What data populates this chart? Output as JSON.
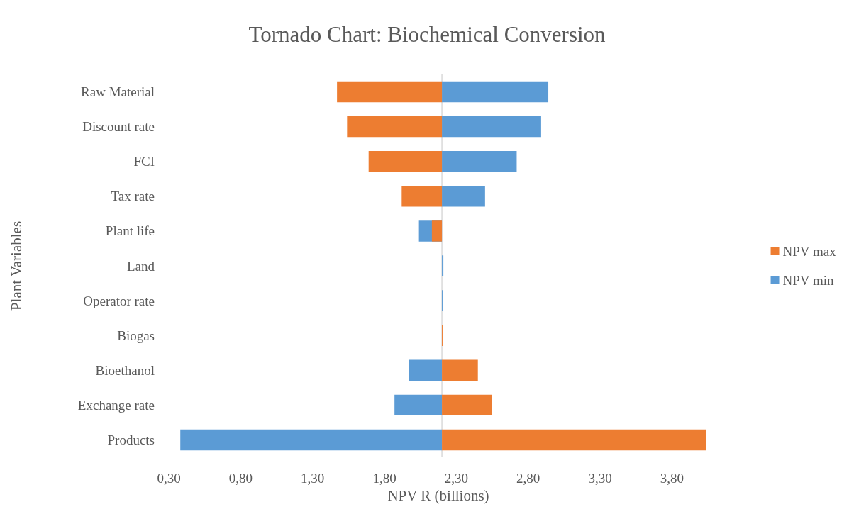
{
  "chart_data": {
    "type": "bar",
    "title": "Tornado Chart: Biochemical Conversion",
    "xlabel": "NPV R (billions)",
    "ylabel": "Plant Variables",
    "orientation": "horizontal",
    "categories": [
      "Raw Material",
      "Discount rate",
      "FCI",
      "Tax rate",
      "Plant life",
      "Land",
      "Operator rate",
      "Biogas",
      "Bioethanol",
      "Exchange rate",
      "Products"
    ],
    "series": [
      {
        "name": "NPV max",
        "color": "#ed7d31",
        "base": [
          2.2,
          2.2,
          2.2,
          2.2,
          2.2,
          null,
          null,
          2.2,
          2.2,
          2.2,
          2.2
        ],
        "values": [
          -0.73,
          -0.66,
          -0.51,
          -0.28,
          -0.07,
          null,
          null,
          0.005,
          0.25,
          0.35,
          1.84
        ]
      },
      {
        "name": "NPV min",
        "color": "#5b9bd5",
        "base": [
          2.2,
          2.2,
          2.2,
          2.2,
          2.2,
          2.2,
          2.2,
          null,
          2.2,
          2.2,
          2.2
        ],
        "values": [
          0.74,
          0.69,
          0.52,
          0.3,
          -0.16,
          0.01,
          0.005,
          null,
          -0.23,
          -0.33,
          -1.82
        ]
      }
    ],
    "xlim": [
      0.3,
      4.05
    ],
    "xticks": [
      {
        "value": 0.3,
        "label": "0,30"
      },
      {
        "value": 0.8,
        "label": "0,80"
      },
      {
        "value": 1.3,
        "label": "1,30"
      },
      {
        "value": 1.8,
        "label": "1,80"
      },
      {
        "value": 2.3,
        "label": "2,30"
      },
      {
        "value": 2.8,
        "label": "2,80"
      },
      {
        "value": 3.3,
        "label": "3,30"
      },
      {
        "value": 3.8,
        "label": "3,80"
      }
    ],
    "ref_lines": [
      {
        "axis": "x",
        "value": 2.2,
        "color": "#d9d9d9"
      }
    ],
    "legend": "right",
    "grid": false
  }
}
